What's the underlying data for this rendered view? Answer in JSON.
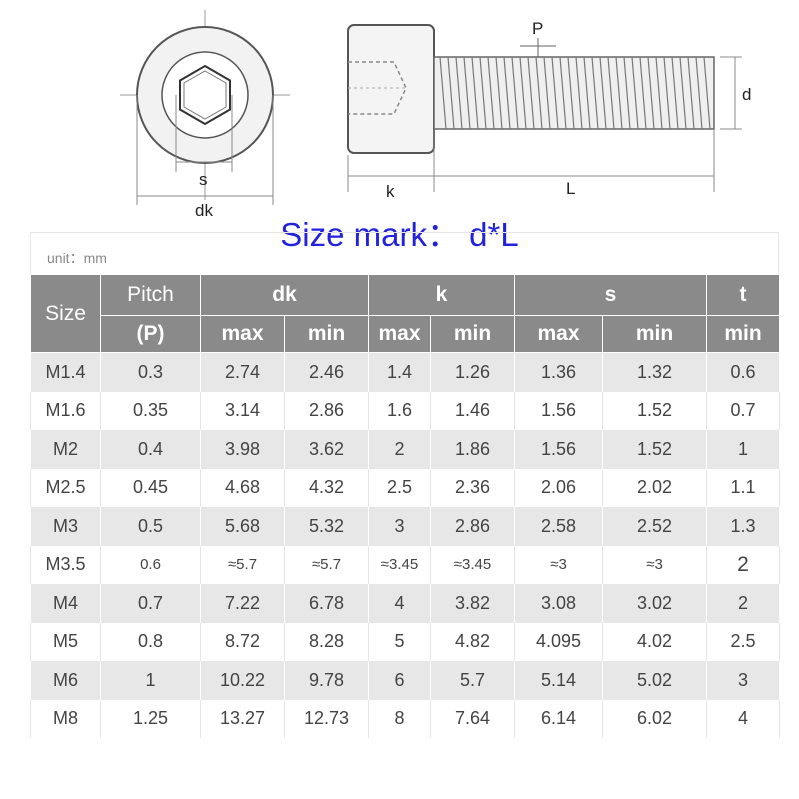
{
  "diagram": {
    "label_s": "s",
    "label_dk": "dk",
    "label_p": "P",
    "label_d": "d",
    "label_k": "k",
    "label_l": "L"
  },
  "size_mark": "Size mark：  d*L",
  "unit": "unit：mm",
  "table": {
    "header_size": "Size",
    "header_pitch": "Pitch",
    "header_pitch_sub": "(P)",
    "header_dk": "dk",
    "header_k": "k",
    "header_s": "s",
    "header_t": "t",
    "sub_max": "max",
    "sub_min": "min",
    "rows": [
      [
        "M1.4",
        "0.3",
        "2.74",
        "2.46",
        "1.4",
        "1.26",
        "1.36",
        "1.32",
        "0.6"
      ],
      [
        "M1.6",
        "0.35",
        "3.14",
        "2.86",
        "1.6",
        "1.46",
        "1.56",
        "1.52",
        "0.7"
      ],
      [
        "M2",
        "0.4",
        "3.98",
        "3.62",
        "2",
        "1.86",
        "1.56",
        "1.52",
        "1"
      ],
      [
        "M2.5",
        "0.45",
        "4.68",
        "4.32",
        "2.5",
        "2.36",
        "2.06",
        "2.02",
        "1.1"
      ],
      [
        "M3",
        "0.5",
        "5.68",
        "5.32",
        "3",
        "2.86",
        "2.58",
        "2.52",
        "1.3"
      ],
      [
        "M3.5",
        "0.6",
        "≈5.7",
        "≈5.7",
        "≈3.45",
        "≈3.45",
        "≈3",
        "≈3",
        "2"
      ],
      [
        "M4",
        "0.7",
        "7.22",
        "6.78",
        "4",
        "3.82",
        "3.08",
        "3.02",
        "2"
      ],
      [
        "M5",
        "0.8",
        "8.72",
        "8.28",
        "5",
        "4.82",
        "4.095",
        "4.02",
        "2.5"
      ],
      [
        "M6",
        "1",
        "10.22",
        "9.78",
        "6",
        "5.7",
        "5.14",
        "5.02",
        "3"
      ],
      [
        "M8",
        "1.25",
        "13.27",
        "12.73",
        "8",
        "7.64",
        "6.14",
        "6.02",
        "4"
      ]
    ]
  },
  "colors": {
    "header_bg": "#8a8a8a",
    "stripe_bg": "#e7e7e7",
    "size_mark_blue": "#2222dd"
  }
}
